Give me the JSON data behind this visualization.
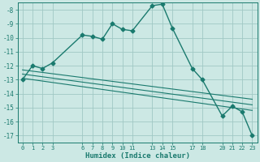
{
  "title": "",
  "xlabel": "Humidex (Indice chaleur)",
  "ylabel": "",
  "bg_color": "#cce8e4",
  "grid_color": "#a0c8c4",
  "line_color": "#1a7a6e",
  "xlim": [
    -0.5,
    23.5
  ],
  "ylim": [
    -17.5,
    -7.5
  ],
  "xticks": [
    0,
    1,
    2,
    3,
    6,
    7,
    8,
    9,
    10,
    11,
    13,
    14,
    15,
    17,
    18,
    20,
    21,
    22,
    23
  ],
  "yticks": [
    -8,
    -9,
    -10,
    -11,
    -12,
    -13,
    -14,
    -15,
    -16,
    -17
  ],
  "main_x": [
    0,
    1,
    2,
    3,
    6,
    7,
    8,
    9,
    10,
    11,
    13,
    14,
    15,
    17,
    18,
    20,
    21,
    22,
    23
  ],
  "main_y": [
    -13.0,
    -12.0,
    -12.2,
    -11.8,
    -9.8,
    -9.9,
    -10.1,
    -9.0,
    -9.4,
    -9.5,
    -7.7,
    -7.6,
    -9.3,
    -12.2,
    -13.0,
    -15.6,
    -14.9,
    -15.3,
    -17.0
  ],
  "line2_x": [
    0,
    23
  ],
  "line2_y": [
    -12.9,
    -15.2
  ],
  "line3_x": [
    0,
    23
  ],
  "line3_y": [
    -12.6,
    -14.8
  ],
  "line4_x": [
    0,
    23
  ],
  "line4_y": [
    -12.3,
    -14.4
  ]
}
